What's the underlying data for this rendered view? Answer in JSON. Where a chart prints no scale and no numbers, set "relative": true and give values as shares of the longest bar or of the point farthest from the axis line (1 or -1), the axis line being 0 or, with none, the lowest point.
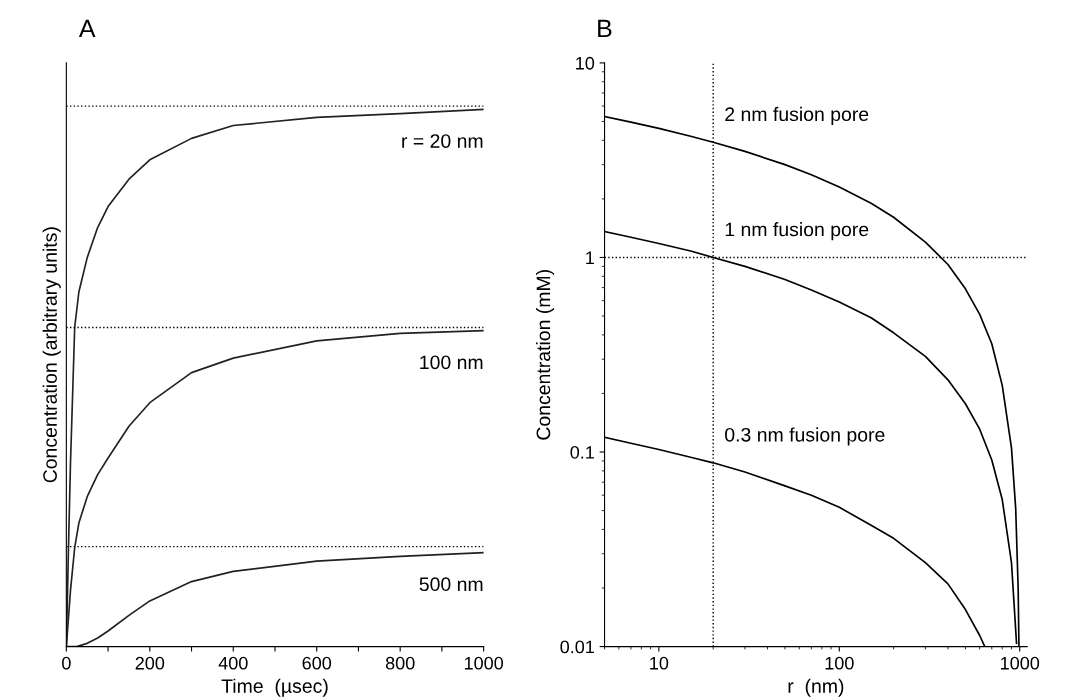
{
  "chart_data": [
    {
      "type": "line",
      "title": "A",
      "xlabel": "Time  (µsec)",
      "ylabel": "Concentration (arbitrary units)",
      "relative": true,
      "tick_labels": "x",
      "line_style": "solid",
      "marker": "none",
      "grid": false,
      "xlim": [
        0,
        1000
      ],
      "xticks": [
        0,
        {
          "value": 100,
          "label": null
        },
        200,
        {
          "value": 300,
          "label": null
        },
        400,
        {
          "value": 500,
          "label": null
        },
        600,
        {
          "value": 700,
          "label": null
        },
        800,
        {
          "value": 900,
          "label": null
        },
        1000
      ],
      "series": [
        {
          "name": "r = 20 nm",
          "color": "#222222",
          "x": [
            0,
            5,
            10,
            20,
            30,
            50,
            75,
            100,
            150,
            200,
            300,
            400,
            600,
            800,
            1000
          ],
          "values": [
            0,
            0.18,
            0.343,
            0.594,
            0.66,
            0.724,
            0.78,
            0.819,
            0.87,
            0.906,
            0.946,
            0.97,
            0.985,
            0.992,
            1.0
          ]
        },
        {
          "name": "100 nm",
          "color": "#222222",
          "x": [
            0,
            10,
            20,
            30,
            50,
            75,
            100,
            150,
            200,
            300,
            400,
            600,
            800,
            1000
          ],
          "values": [
            0,
            0.105,
            0.184,
            0.23,
            0.279,
            0.32,
            0.351,
            0.41,
            0.454,
            0.51,
            0.537,
            0.569,
            0.583,
            0.588
          ]
        },
        {
          "name": "500 nm",
          "color": "#222222",
          "x": [
            0,
            25,
            50,
            75,
            100,
            150,
            200,
            300,
            400,
            600,
            800,
            1000
          ],
          "values": [
            0,
            0,
            0.006,
            0.016,
            0.029,
            0.058,
            0.085,
            0.121,
            0.14,
            0.159,
            0.168,
            0.175
          ]
        }
      ],
      "ref_lines": [
        {
          "axis": "y",
          "value": 1.006,
          "color": "#000000",
          "line_style": "dotted"
        },
        {
          "axis": "y",
          "value": 0.594,
          "color": "#000000",
          "line_style": "dotted"
        },
        {
          "axis": "y",
          "value": 0.186,
          "color": "#000000",
          "line_style": "dotted"
        }
      ]
    },
    {
      "type": "line",
      "title": "B",
      "xlabel": "r  (nm)",
      "ylabel": "Concentration (mM)",
      "log": "xy",
      "line_style": "solid",
      "marker": "none",
      "grid": false,
      "xlim": [
        5,
        1100
      ],
      "xticks": [
        10,
        100,
        1000
      ],
      "ylim": [
        0.01,
        10
      ],
      "yticks": [
        0.01,
        0.1,
        1,
        10
      ],
      "series": [
        {
          "name": "2 nm fusion pore",
          "color": "#000000",
          "x": [
            5,
            7,
            10,
            15,
            20,
            30,
            50,
            70,
            100,
            150,
            200,
            300,
            400,
            500,
            600,
            700,
            800,
            900,
            950,
            980,
            990
          ],
          "values": [
            5.3,
            4.96,
            4.61,
            4.2,
            3.91,
            3.51,
            3.0,
            2.66,
            2.3,
            1.9,
            1.61,
            1.2,
            0.92,
            0.69,
            0.51,
            0.36,
            0.22,
            0.105,
            0.051,
            0.02,
            0.01
          ]
        },
        {
          "name": "1 nm fusion pore",
          "color": "#000000",
          "x": [
            5,
            7,
            10,
            15,
            20,
            30,
            50,
            70,
            100,
            150,
            200,
            300,
            400,
            500,
            600,
            700,
            800,
            900,
            960
          ],
          "values": [
            1.36,
            1.27,
            1.18,
            1.08,
            1.0,
            0.9,
            0.77,
            0.68,
            0.59,
            0.49,
            0.41,
            0.31,
            0.235,
            0.177,
            0.131,
            0.091,
            0.057,
            0.027,
            0.0104
          ]
        },
        {
          "name": "0.3 nm fusion pore",
          "color": "#000000",
          "x": [
            5,
            7,
            10,
            15,
            20,
            30,
            50,
            70,
            100,
            150,
            200,
            300,
            400,
            500,
            600,
            640
          ],
          "values": [
            0.119,
            0.111,
            0.103,
            0.094,
            0.088,
            0.079,
            0.067,
            0.06,
            0.052,
            0.042,
            0.036,
            0.027,
            0.021,
            0.0155,
            0.0114,
            0.01
          ]
        }
      ],
      "ref_lines": [
        {
          "axis": "x",
          "value": 20,
          "color": "#000000",
          "line_style": "dotted"
        },
        {
          "axis": "y",
          "value": 1,
          "color": "#000000",
          "line_style": "dotted"
        }
      ]
    }
  ]
}
